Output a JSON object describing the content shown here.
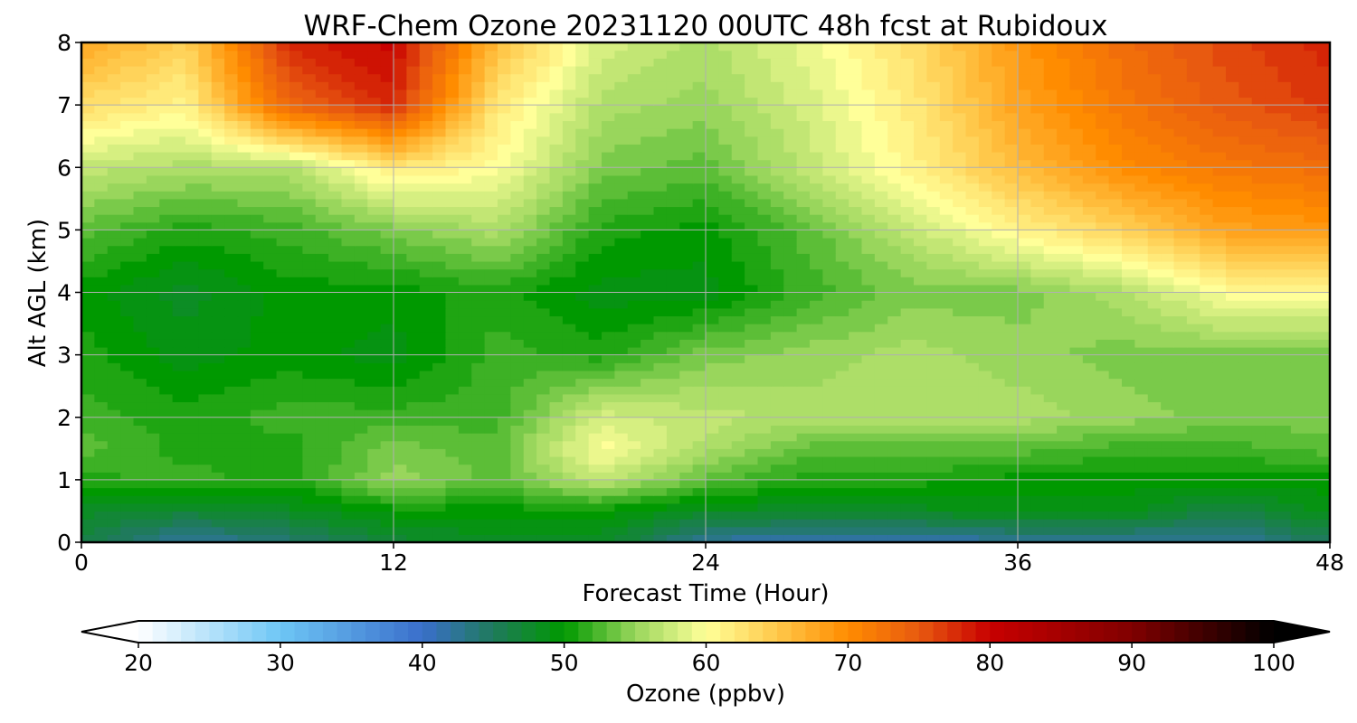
{
  "chart_data": {
    "type": "heatmap",
    "title": "WRF-Chem Ozone  20231120 00UTC 48h fcst at Rubidoux",
    "xlabel": "Forecast Time (Hour)",
    "ylabel": "Alt AGL (km)",
    "xlim": [
      0,
      48
    ],
    "ylim": [
      0,
      8
    ],
    "xticks": [
      0,
      12,
      24,
      36,
      48
    ],
    "yticks": [
      0,
      1,
      2,
      3,
      4,
      5,
      6,
      7,
      8
    ],
    "grid": true,
    "x": [
      0,
      4,
      8,
      12,
      16,
      20,
      24,
      28,
      32,
      36,
      40,
      44,
      48
    ],
    "y": [
      0,
      0.5,
      1,
      1.5,
      2,
      3,
      4,
      5,
      6,
      7,
      8
    ],
    "z": [
      [
        46,
        42,
        44,
        47,
        48,
        48,
        42,
        41,
        41,
        42,
        42,
        42,
        45
      ],
      [
        48,
        47,
        48,
        50,
        50,
        50,
        48,
        48,
        48,
        49,
        49,
        46,
        49
      ],
      [
        51,
        52,
        51,
        55,
        53,
        57,
        53,
        51,
        51,
        50,
        50,
        50,
        50
      ],
      [
        53,
        51,
        51,
        54,
        53,
        60,
        56,
        53,
        53,
        53,
        52,
        52,
        53
      ],
      [
        52,
        51,
        52,
        52,
        52,
        58,
        57,
        56,
        56,
        56,
        55,
        54,
        54
      ],
      [
        51,
        49,
        50,
        49,
        52,
        51,
        54,
        55,
        56,
        55,
        54,
        54,
        54
      ],
      [
        50,
        48,
        50,
        50,
        51,
        49,
        49,
        52,
        54,
        54,
        56,
        60,
        60
      ],
      [
        53,
        51,
        52,
        54,
        56,
        51,
        50,
        53,
        57,
        61,
        64,
        68,
        69
      ],
      [
        57,
        56,
        56,
        62,
        60,
        54,
        53,
        57,
        61,
        66,
        70,
        72,
        73
      ],
      [
        63,
        61,
        74,
        78,
        62,
        56,
        55,
        58,
        62,
        68,
        72,
        75,
        77
      ],
      [
        68,
        64,
        78,
        80,
        66,
        58,
        56,
        59,
        63,
        69,
        73,
        76,
        78
      ]
    ],
    "colorbar": {
      "label": "Ozone  (ppbv)",
      "min": 20,
      "max": 100,
      "ticks": [
        20,
        30,
        40,
        50,
        60,
        70,
        80,
        90,
        100
      ],
      "extend": "both",
      "color_stops": [
        {
          "v": 20,
          "c": "#ffffff"
        },
        {
          "v": 30,
          "c": "#6ec6f5"
        },
        {
          "v": 40,
          "c": "#3a6fcb"
        },
        {
          "v": 45,
          "c": "#1f7a5c"
        },
        {
          "v": 50,
          "c": "#009900"
        },
        {
          "v": 55,
          "c": "#99d65c"
        },
        {
          "v": 60,
          "c": "#ffff99"
        },
        {
          "v": 65,
          "c": "#ffc84a"
        },
        {
          "v": 70,
          "c": "#ff8c00"
        },
        {
          "v": 75,
          "c": "#e85a10"
        },
        {
          "v": 80,
          "c": "#c80000"
        },
        {
          "v": 90,
          "c": "#800000"
        },
        {
          "v": 100,
          "c": "#000000"
        }
      ]
    }
  }
}
